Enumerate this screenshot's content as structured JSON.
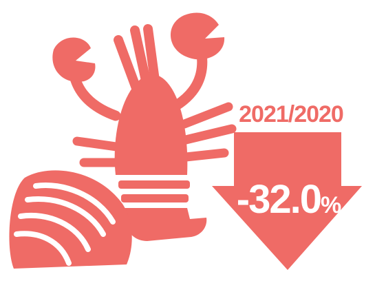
{
  "colors": {
    "accent": "#ef6b66",
    "background": "#ffffff",
    "inverse_text": "#ffffff"
  },
  "icons": {
    "lobster": "lobster-icon",
    "clam": "clam-shell-icon",
    "arrow": "down-arrow-icon"
  },
  "comparison": {
    "period": "2021/2020",
    "change_value": "-32.0",
    "change_unit": "%",
    "direction": "down"
  }
}
